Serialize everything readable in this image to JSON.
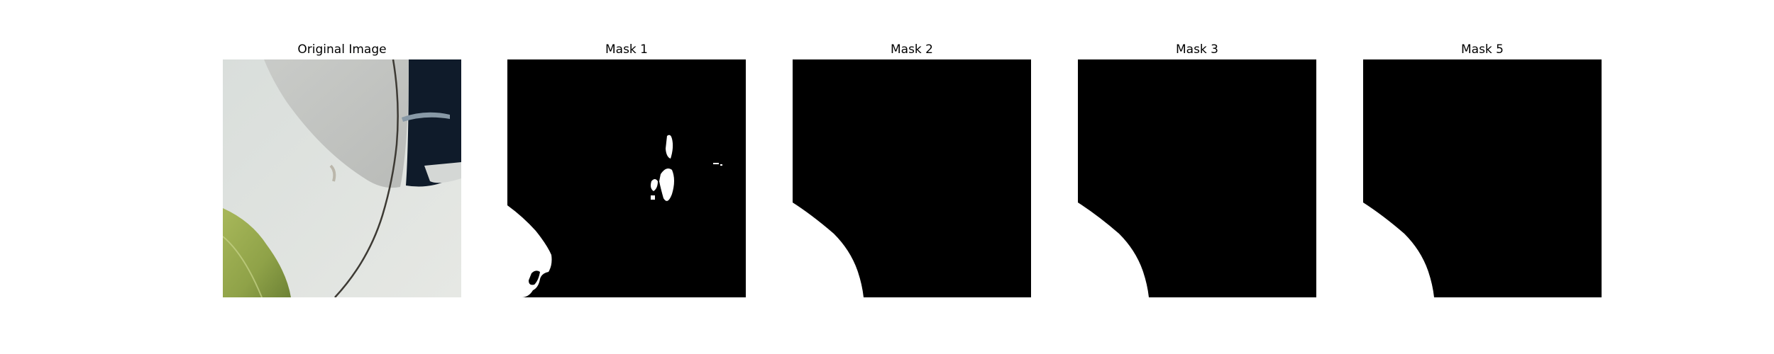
{
  "panels": [
    {
      "title": "Original Image"
    },
    {
      "title": "Mask 1"
    },
    {
      "title": "Mask 2"
    },
    {
      "title": "Mask 3"
    },
    {
      "title": "Mask 5"
    }
  ],
  "colors": {
    "background": "#ffffff",
    "mask_background": "#000000",
    "mask_foreground": "#ffffff",
    "leaf_green": "#8fa64a",
    "surface_white": "#dfe2df",
    "dark_opening": "#0e1a28"
  }
}
